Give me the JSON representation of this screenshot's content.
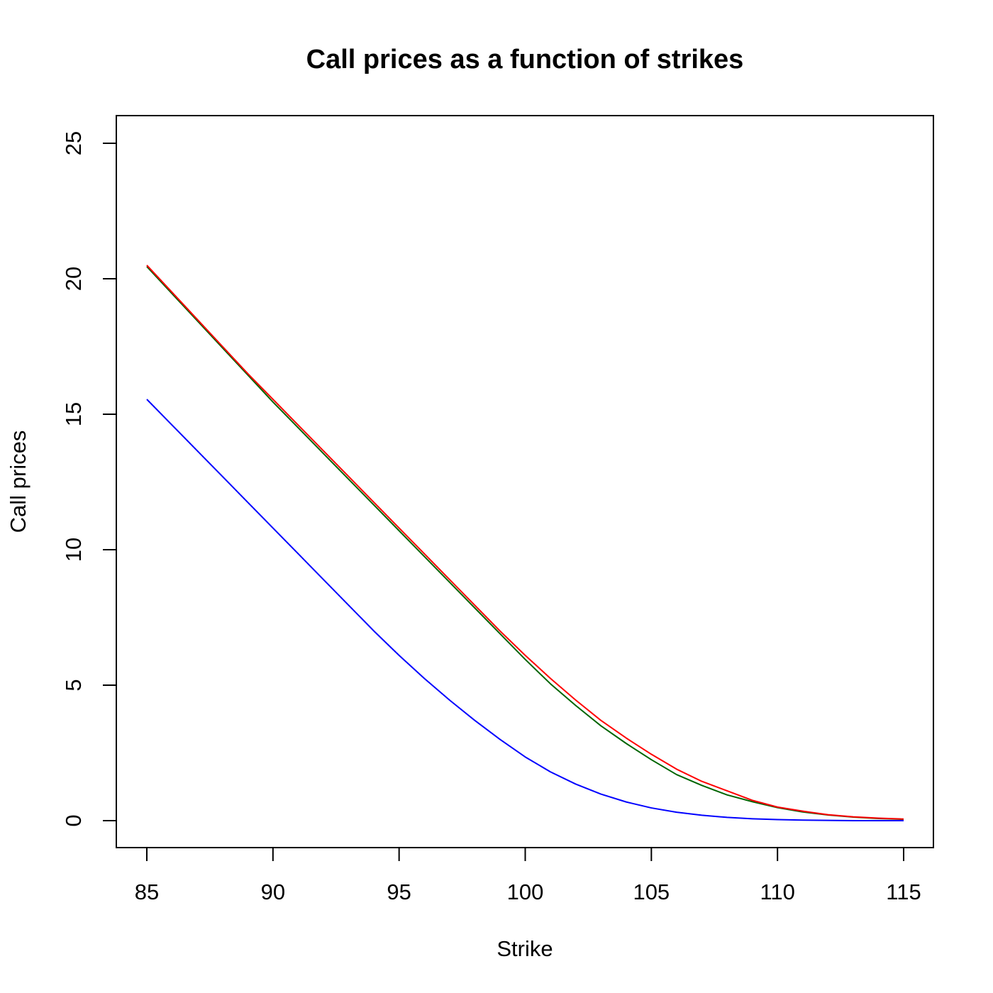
{
  "chart_data": {
    "type": "line",
    "title": "Call prices as a function of strikes",
    "xlabel": "Strike",
    "ylabel": "Call prices",
    "xlim": [
      85,
      115
    ],
    "ylim": [
      0,
      25
    ],
    "xticks": [
      "85",
      "90",
      "95",
      "100",
      "105",
      "110",
      "115"
    ],
    "yticks": [
      "0",
      "5",
      "10",
      "15",
      "20",
      "25"
    ],
    "grid": false,
    "legend": "none",
    "x": [
      85,
      86,
      87,
      88,
      89,
      90,
      91,
      92,
      93,
      94,
      95,
      96,
      97,
      98,
      99,
      100,
      101,
      102,
      103,
      104,
      105,
      106,
      107,
      108,
      109,
      110,
      111,
      112,
      113,
      114,
      115
    ],
    "series": [
      {
        "color": "#ff0000",
        "values": [
          20.5,
          19.5,
          18.5,
          17.5,
          16.5,
          15.55,
          14.6,
          13.65,
          12.7,
          11.75,
          10.8,
          9.85,
          8.9,
          7.95,
          7.0,
          6.1,
          5.25,
          4.45,
          3.7,
          3.05,
          2.45,
          1.9,
          1.45,
          1.1,
          0.75,
          0.5,
          0.35,
          0.22,
          0.14,
          0.09,
          0.06
        ]
      },
      {
        "color": "#006400",
        "values": [
          20.45,
          19.45,
          18.45,
          17.45,
          16.45,
          15.45,
          14.5,
          13.55,
          12.6,
          11.65,
          10.7,
          9.75,
          8.8,
          7.85,
          6.9,
          5.95,
          5.05,
          4.25,
          3.5,
          2.85,
          2.25,
          1.7,
          1.3,
          0.95,
          0.7,
          0.48,
          0.32,
          0.21,
          0.13,
          0.08,
          0.05
        ]
      },
      {
        "color": "#0000ff",
        "values": [
          15.55,
          14.6,
          13.65,
          12.7,
          11.75,
          10.8,
          9.85,
          8.9,
          7.95,
          7.0,
          6.1,
          5.25,
          4.45,
          3.7,
          3.0,
          2.35,
          1.8,
          1.35,
          0.98,
          0.69,
          0.47,
          0.31,
          0.2,
          0.12,
          0.07,
          0.04,
          0.02,
          0.01,
          0.0,
          0.0,
          0.0
        ]
      }
    ]
  }
}
